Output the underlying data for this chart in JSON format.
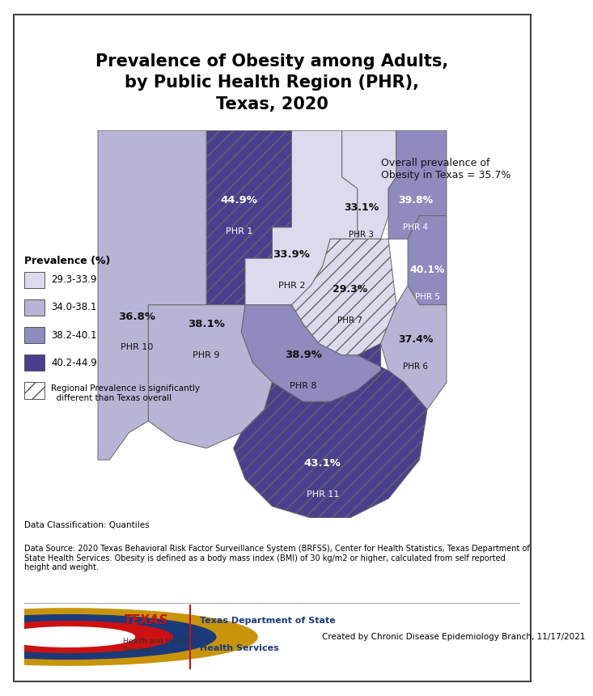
{
  "title": "Prevalence of Obesity among Adults,\nby Public Health Region (PHR),\nTexas, 2020",
  "overall_text": "Overall prevalence of\nObesity in Texas = 35.7%",
  "regions": {
    "PHR 1": {
      "value": 44.9,
      "color": "#4a3f8f",
      "hatched": true
    },
    "PHR 2": {
      "value": 33.9,
      "color": "#dddaee",
      "hatched": false
    },
    "PHR 3": {
      "value": 33.1,
      "color": "#dddaee",
      "hatched": false
    },
    "PHR 4": {
      "value": 39.8,
      "color": "#8f8bbf",
      "hatched": false
    },
    "PHR 5": {
      "value": 40.1,
      "color": "#8f8bbf",
      "hatched": false
    },
    "PHR 6": {
      "value": 37.4,
      "color": "#b8b4d5",
      "hatched": false
    },
    "PHR 7": {
      "value": 29.3,
      "color": "#dddaee",
      "hatched": true
    },
    "PHR 8": {
      "value": 38.9,
      "color": "#8f8bbf",
      "hatched": false
    },
    "PHR 9": {
      "value": 38.1,
      "color": "#b8b4d5",
      "hatched": false
    },
    "PHR 10": {
      "value": 36.8,
      "color": "#b8b4d5",
      "hatched": false
    },
    "PHR 11": {
      "value": 43.1,
      "color": "#4a3f8f",
      "hatched": true
    }
  },
  "legend_colors": [
    "#dddaee",
    "#b8b4d5",
    "#8f8bbf",
    "#4a3f8f"
  ],
  "legend_labels": [
    "29.3-33.9",
    "34.0-38.1",
    "38.2-40.1",
    "40.2-44.9"
  ],
  "data_classification": "Data Classification: Quantiles",
  "data_source": "Data Source: 2020 Texas Behavioral Risk Factor Surveillance System (BRFSS), Center for Health Statistics, Texas Department of\nState Health Services. Obesity is defined as a body mass index (BMI) of 30 kg/m2 or higher, calculated from self reported\nheight and weight.",
  "credit": "Created by Chronic Disease Epidemiology Branch, 11/17/2021",
  "bg_color": "#ffffff"
}
